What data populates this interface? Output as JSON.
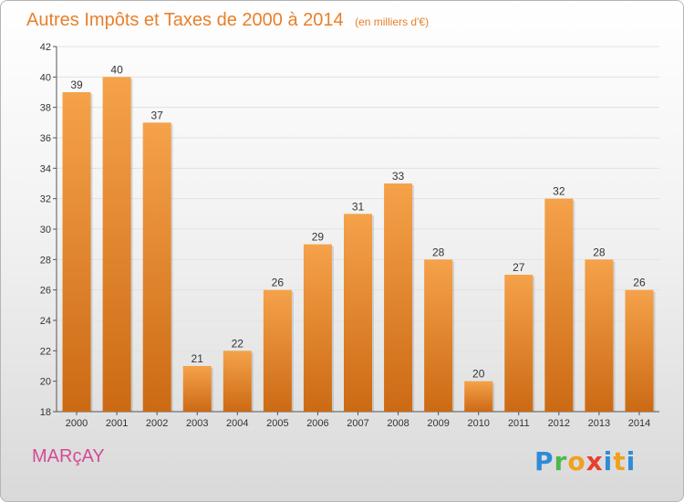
{
  "chart_data": {
    "type": "bar",
    "title": "Autres Impôts et Taxes de 2000 à 2014",
    "unit_note": "(en milliers d'€)",
    "categories": [
      "2000",
      "2001",
      "2002",
      "2003",
      "2004",
      "2005",
      "2006",
      "2007",
      "2008",
      "2009",
      "2010",
      "2011",
      "2012",
      "2013",
      "2014"
    ],
    "values": [
      39,
      40,
      37,
      21,
      22,
      26,
      29,
      31,
      33,
      28,
      20,
      27,
      32,
      28,
      26
    ],
    "ylim": [
      18,
      42
    ],
    "yticks": [
      18,
      20,
      22,
      24,
      26,
      28,
      30,
      32,
      34,
      36,
      38,
      40,
      42
    ],
    "grid": true,
    "bar_color_top": "#f5a24a",
    "bar_color_bottom": "#cc6a14"
  },
  "commune": "MARçAY",
  "logo": "Proxiti",
  "colors": {
    "title": "#e8802a",
    "commune": "#d44a96"
  }
}
